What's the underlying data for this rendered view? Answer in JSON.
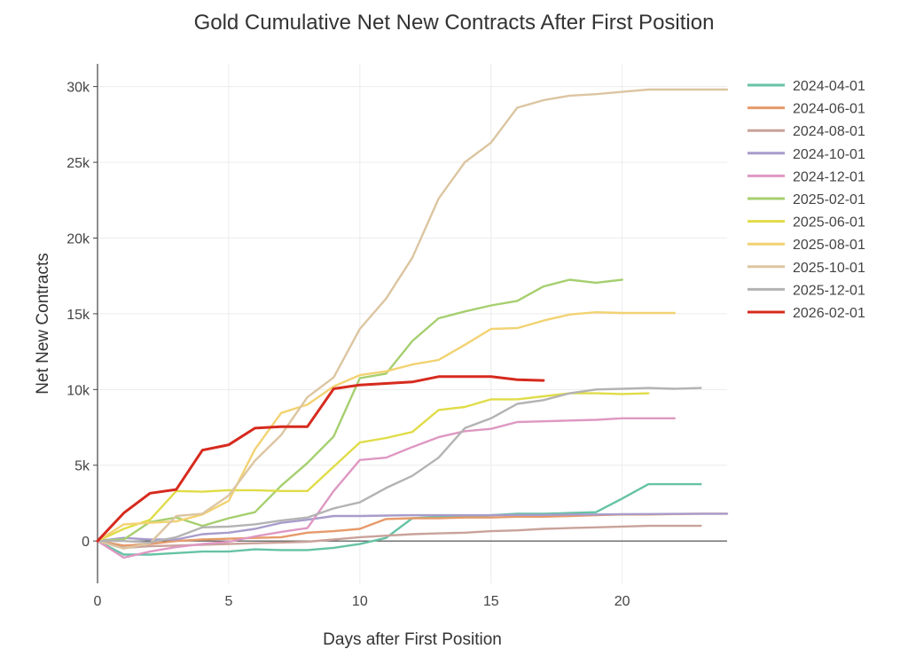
{
  "chart_data": {
    "type": "line",
    "title": "Gold Cumulative Net New Contracts After First Position",
    "xlabel": "Days after First Position",
    "ylabel": "Net New Contracts",
    "xlim": [
      0,
      24
    ],
    "ylim": [
      -2800,
      31500
    ],
    "x_ticks": [
      0,
      5,
      10,
      15,
      20
    ],
    "x_tick_labels": [
      "0",
      "5",
      "10",
      "15",
      "20"
    ],
    "y_ticks": [
      0,
      5000,
      10000,
      15000,
      20000,
      25000,
      30000
    ],
    "y_tick_labels": [
      "0",
      "5k",
      "10k",
      "15k",
      "20k",
      "25k",
      "30k"
    ],
    "grid": true,
    "legend_position": "right",
    "series": [
      {
        "name": "2024-04-01",
        "color": "#66c2a5",
        "x": [
          0,
          1,
          2,
          3,
          4,
          5,
          6,
          7,
          8,
          9,
          10,
          11,
          12,
          13,
          14,
          15,
          16,
          17,
          18,
          19,
          20,
          21,
          22,
          23
        ],
        "y": [
          0,
          -900,
          -900,
          -800,
          -700,
          -700,
          -550,
          -600,
          -600,
          -450,
          -200,
          200,
          1500,
          1600,
          1650,
          1700,
          1800,
          1800,
          1850,
          1900,
          2800,
          3750,
          3750,
          3750
        ]
      },
      {
        "name": "2024-06-01",
        "color": "#e69a6a",
        "x": [
          0,
          1,
          2,
          3,
          4,
          5,
          6,
          7,
          8,
          9,
          10,
          11,
          12,
          13,
          14,
          15,
          16,
          17,
          18,
          19,
          20,
          21,
          22,
          23,
          24
        ],
        "y": [
          0,
          -300,
          -200,
          0,
          100,
          150,
          200,
          250,
          550,
          650,
          800,
          1450,
          1500,
          1500,
          1550,
          1550,
          1600,
          1600,
          1650,
          1700,
          1750,
          1750,
          1780,
          1800,
          1800
        ]
      },
      {
        "name": "2024-08-01",
        "color": "#c9a29a",
        "x": [
          0,
          1,
          2,
          3,
          4,
          5,
          6,
          7,
          8,
          9,
          10,
          11,
          12,
          13,
          14,
          15,
          16,
          17,
          18,
          19,
          20,
          21,
          22,
          23
        ],
        "y": [
          0,
          -450,
          -350,
          -300,
          -250,
          -200,
          -150,
          -100,
          -50,
          100,
          250,
          350,
          450,
          500,
          550,
          650,
          700,
          800,
          850,
          900,
          950,
          1000,
          1000,
          1000
        ]
      },
      {
        "name": "2024-10-01",
        "color": "#a89ccb",
        "x": [
          0,
          1,
          2,
          3,
          4,
          5,
          6,
          7,
          8,
          9,
          10,
          11,
          12,
          13,
          14,
          15,
          16,
          17,
          18,
          19,
          20,
          21,
          22,
          23,
          24
        ],
        "y": [
          0,
          200,
          100,
          100,
          450,
          550,
          800,
          1200,
          1400,
          1650,
          1650,
          1680,
          1700,
          1700,
          1700,
          1700,
          1720,
          1720,
          1750,
          1750,
          1770,
          1780,
          1790,
          1800,
          1800
        ]
      },
      {
        "name": "2024-12-01",
        "color": "#de98c2",
        "x": [
          0,
          1,
          2,
          3,
          4,
          5,
          6,
          7,
          8,
          9,
          10,
          11,
          12,
          13,
          14,
          15,
          16,
          17,
          18,
          19,
          20,
          21,
          22
        ],
        "y": [
          0,
          -1100,
          -700,
          -400,
          -200,
          -50,
          300,
          600,
          850,
          3300,
          5350,
          5500,
          6200,
          6850,
          7250,
          7400,
          7850,
          7900,
          7950,
          8000,
          8100,
          8100,
          8100
        ]
      },
      {
        "name": "2025-02-01",
        "color": "#a6cf6f",
        "x": [
          0,
          1,
          2,
          3,
          4,
          5,
          6,
          7,
          8,
          9,
          10,
          11,
          12,
          13,
          14,
          15,
          16,
          17,
          18,
          19,
          20
        ],
        "y": [
          0,
          100,
          1250,
          1550,
          1000,
          1500,
          1900,
          3650,
          5150,
          6900,
          10750,
          11050,
          13200,
          14700,
          15150,
          15550,
          15850,
          16800,
          17250,
          17050,
          17250
        ]
      },
      {
        "name": "2025-06-01",
        "color": "#e0dc48",
        "x": [
          0,
          1,
          2,
          3,
          4,
          5,
          6,
          7,
          8,
          9,
          10,
          11,
          12,
          13,
          14,
          15,
          16,
          17,
          18,
          19,
          20,
          21
        ],
        "y": [
          0,
          800,
          1400,
          3300,
          3250,
          3350,
          3350,
          3300,
          3300,
          4900,
          6500,
          6800,
          7200,
          8650,
          8850,
          9350,
          9350,
          9550,
          9750,
          9750,
          9700,
          9750
        ]
      },
      {
        "name": "2025-08-01",
        "color": "#f2d272",
        "x": [
          0,
          1,
          2,
          3,
          4,
          5,
          6,
          7,
          8,
          9,
          10,
          11,
          12,
          13,
          14,
          15,
          16,
          17,
          18,
          19,
          20,
          21,
          22
        ],
        "y": [
          0,
          1100,
          1200,
          1300,
          1750,
          2650,
          6050,
          8450,
          9000,
          10200,
          10950,
          11200,
          11650,
          11950,
          12950,
          14000,
          14050,
          14550,
          14950,
          15100,
          15050,
          15050,
          15050
        ]
      },
      {
        "name": "2025-10-01",
        "color": "#dcc5a1",
        "x": [
          0,
          1,
          2,
          3,
          4,
          5,
          6,
          7,
          8,
          9,
          10,
          11,
          12,
          13,
          14,
          15,
          16,
          17,
          18,
          19,
          20,
          21,
          22,
          23,
          24
        ],
        "y": [
          0,
          -500,
          -150,
          1650,
          1800,
          3000,
          5300,
          7000,
          9500,
          10800,
          14000,
          16000,
          18700,
          22600,
          25000,
          26300,
          28600,
          29100,
          29400,
          29500,
          29650,
          29800,
          29800,
          29800,
          29800
        ]
      },
      {
        "name": "2025-12-01",
        "color": "#b3b3b3",
        "x": [
          0,
          1,
          2,
          3,
          4,
          5,
          6,
          7,
          8,
          9,
          10,
          11,
          12,
          13,
          14,
          15,
          16,
          17,
          18,
          19,
          20,
          21,
          22,
          23
        ],
        "y": [
          0,
          0,
          -100,
          250,
          900,
          950,
          1100,
          1350,
          1550,
          2150,
          2550,
          3500,
          4300,
          5500,
          7450,
          8100,
          9050,
          9300,
          9750,
          10000,
          10050,
          10100,
          10050,
          10100
        ]
      },
      {
        "name": "2026-02-01",
        "color": "#d62a1e",
        "x": [
          0,
          1,
          2,
          3,
          4,
          5,
          6,
          7,
          8,
          9,
          10,
          11,
          12,
          13,
          14,
          15,
          16,
          17
        ],
        "y": [
          0,
          1850,
          3150,
          3400,
          6000,
          6350,
          7450,
          7550,
          7550,
          10050,
          10300,
          10400,
          10500,
          10850,
          10850,
          10850,
          10650,
          10600
        ]
      }
    ]
  }
}
